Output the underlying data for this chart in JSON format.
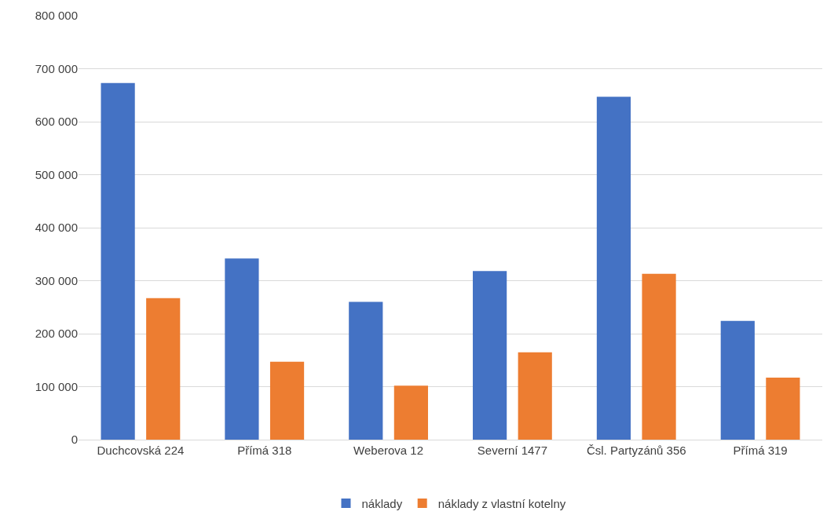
{
  "chart_data": {
    "type": "bar",
    "categories": [
      "Duchcovská 224",
      "Přímá 318",
      "Weberova 12",
      "Severní 1477",
      "Čsl. Partyzánů 356",
      "Přímá 319"
    ],
    "series": [
      {
        "name": "náklady",
        "color": "#4472c4",
        "values": [
          673000,
          342000,
          260000,
          318000,
          647000,
          224000
        ]
      },
      {
        "name": "náklady z vlastní kotelny",
        "color": "#ed7d31",
        "values": [
          267000,
          147000,
          102000,
          165000,
          313000,
          117000
        ]
      }
    ],
    "ylim": [
      0,
      800000
    ],
    "yticks": [
      {
        "value": 0,
        "label": "0"
      },
      {
        "value": 100000,
        "label": "100 000"
      },
      {
        "value": 200000,
        "label": "200 000"
      },
      {
        "value": 300000,
        "label": "300 000"
      },
      {
        "value": 400000,
        "label": "400 000"
      },
      {
        "value": 500000,
        "label": "500 000"
      },
      {
        "value": 600000,
        "label": "600 000"
      },
      {
        "value": 700000,
        "label": "700 000"
      },
      {
        "value": 800000,
        "label": "800 000"
      }
    ],
    "grid": "y",
    "legend": "bottom"
  }
}
